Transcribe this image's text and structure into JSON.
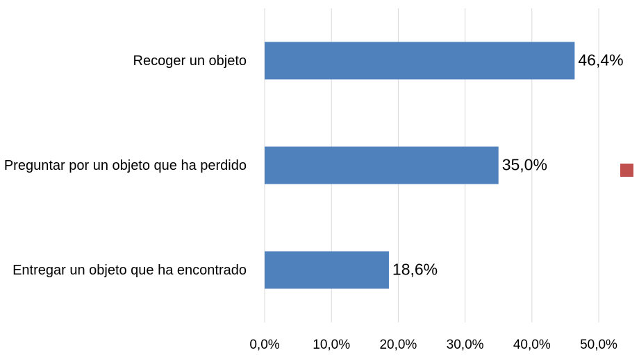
{
  "chart_data": {
    "type": "bar",
    "orientation": "horizontal",
    "categories": [
      "Recoger un objeto",
      "Preguntar por un objeto que ha perdido",
      "Entregar un objeto que ha encontrado"
    ],
    "values": [
      46.4,
      35.0,
      18.6
    ],
    "value_labels": [
      "46,4%",
      "35,0%",
      "18,6%"
    ],
    "color": "#4f81bd",
    "xlim": [
      0,
      50
    ],
    "xticks": [
      {
        "value": 0,
        "label": "0,0%"
      },
      {
        "value": 10,
        "label": "10,0%"
      },
      {
        "value": 20,
        "label": "20,0%"
      },
      {
        "value": 30,
        "label": "30,0%"
      },
      {
        "value": 40,
        "label": "40,0%"
      },
      {
        "value": 50,
        "label": "50,0%"
      }
    ],
    "grid": true
  }
}
